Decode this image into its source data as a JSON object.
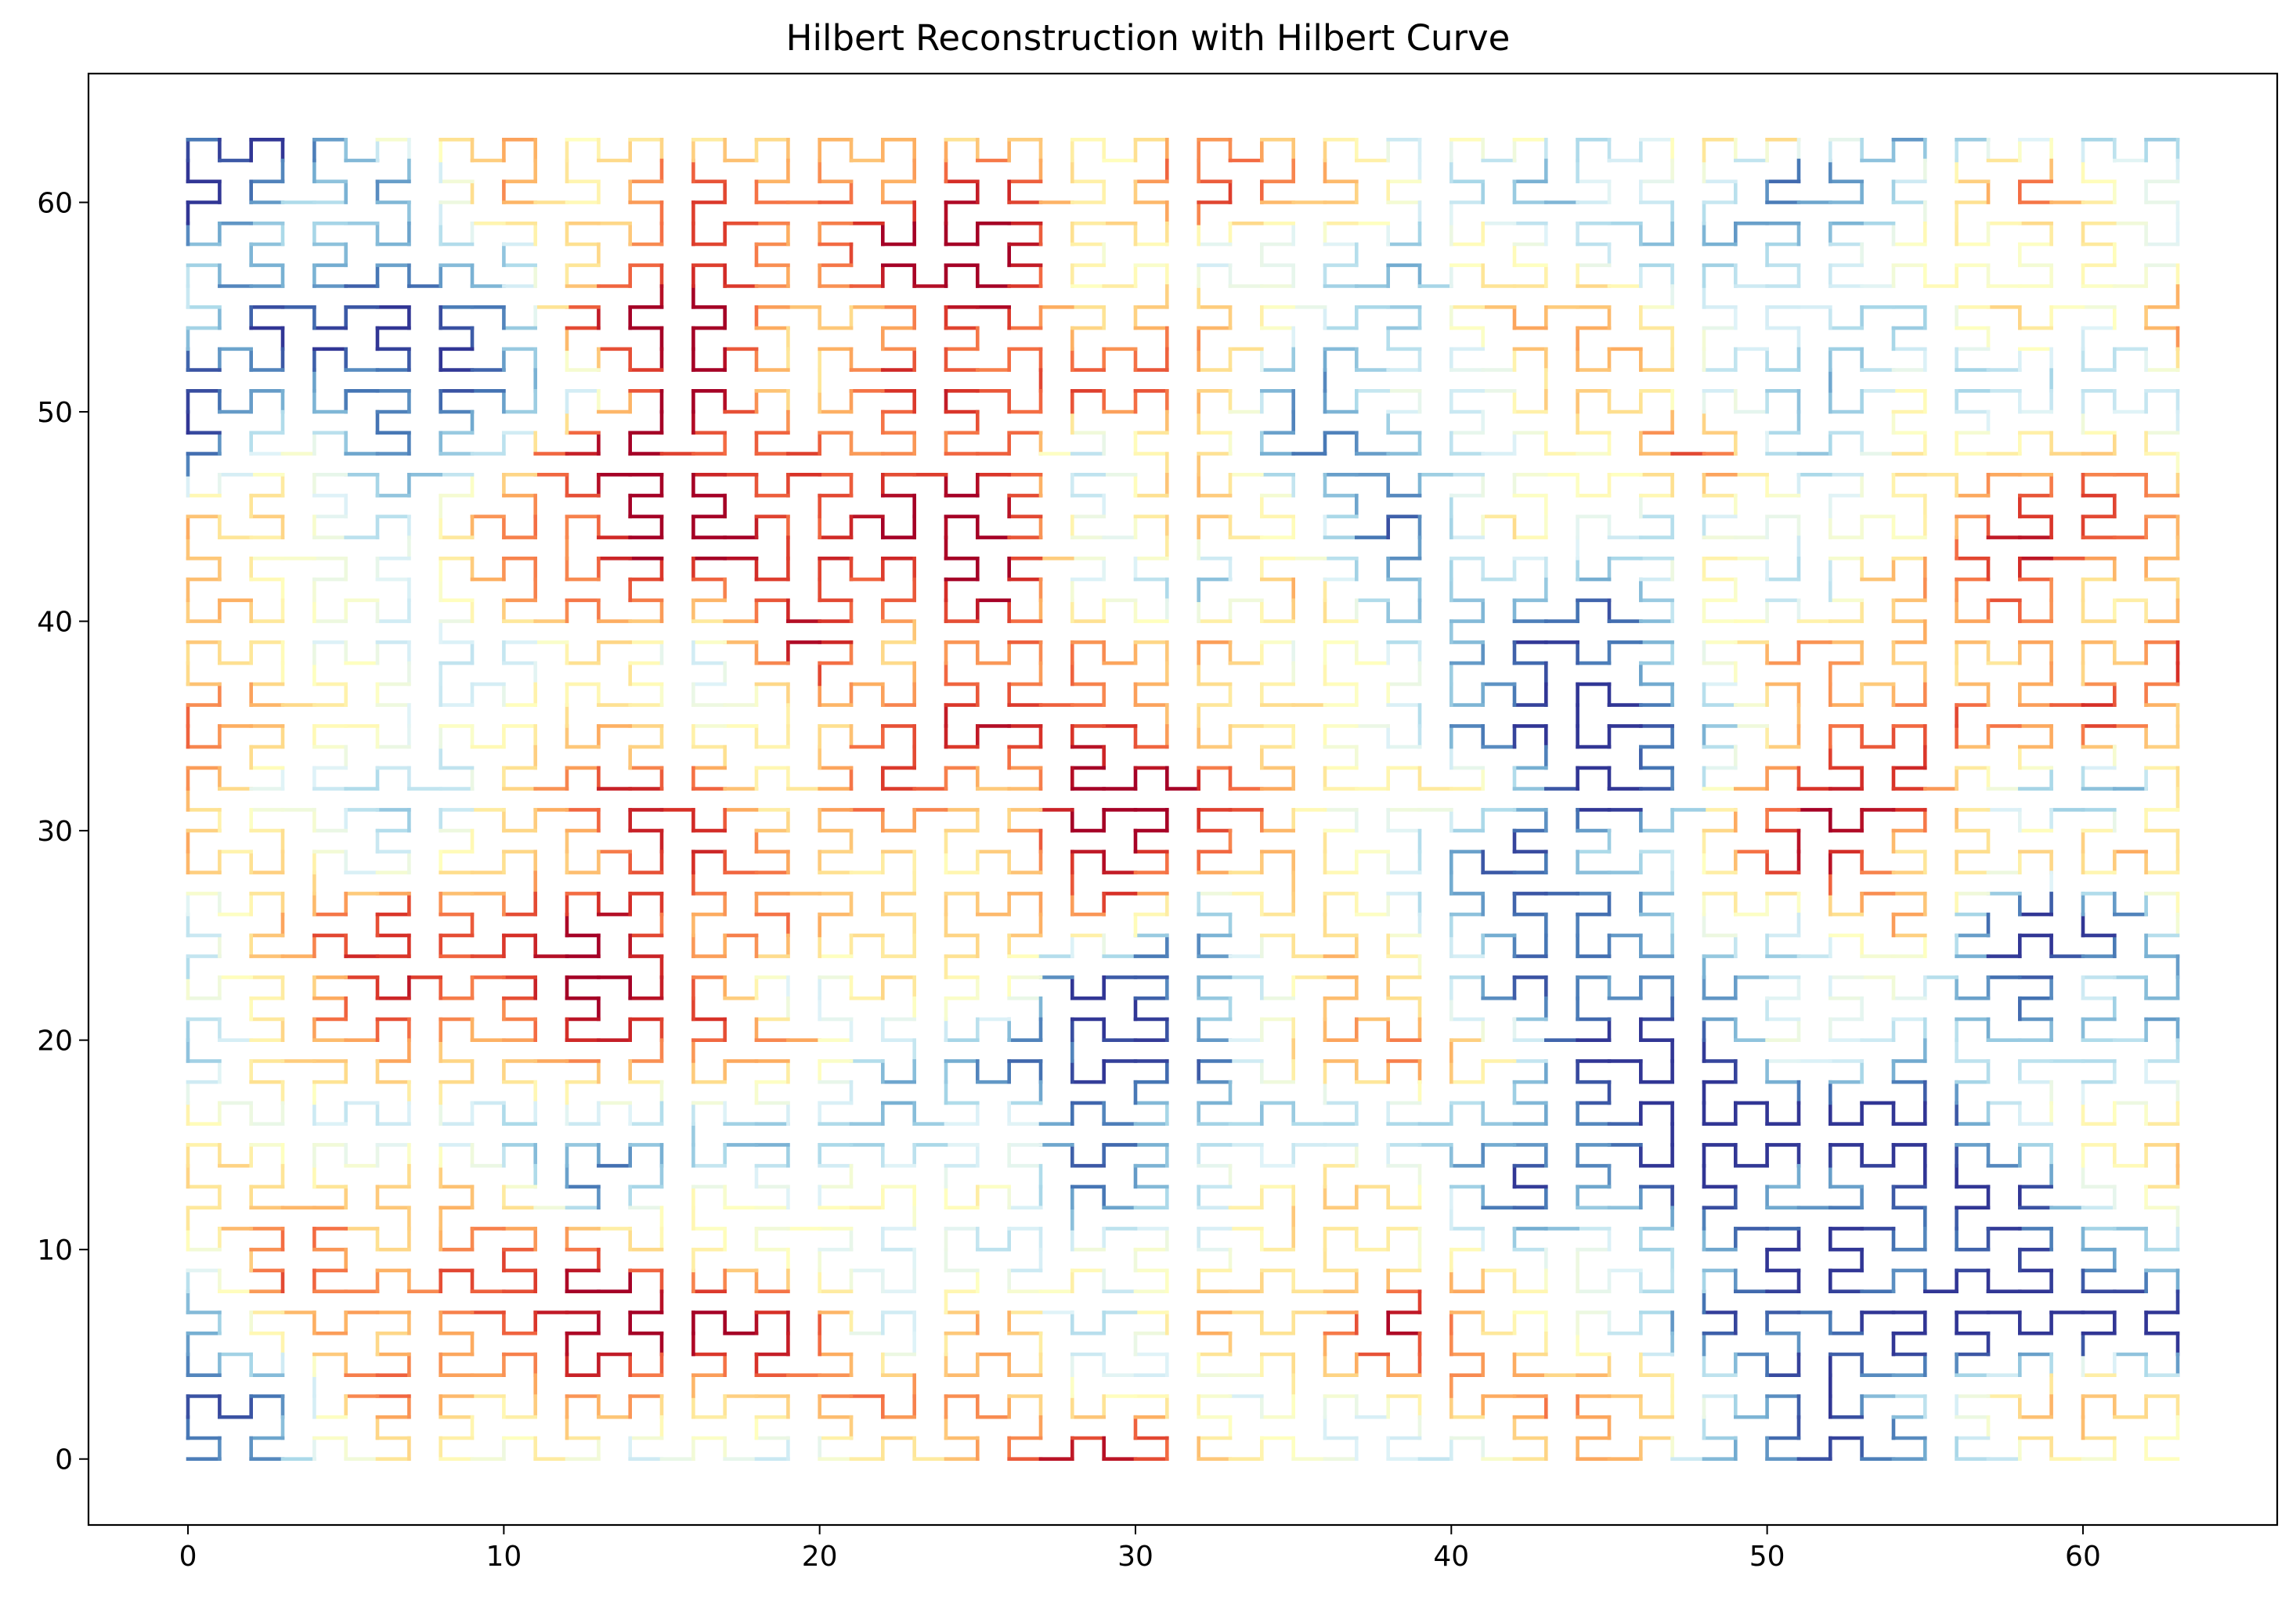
{
  "chart_data": {
    "type": "line",
    "title": "Hilbert Reconstruction with Hilbert Curve",
    "xlabel": "",
    "ylabel": "",
    "curve": {
      "kind": "hilbert",
      "order": 6,
      "grid_size": 64
    },
    "xlim": [
      -3.15,
      66.15
    ],
    "ylim": [
      -3.15,
      66.15
    ],
    "x_ticks": [
      0,
      10,
      20,
      30,
      40,
      50,
      60
    ],
    "y_ticks": [
      0,
      10,
      20,
      30,
      40,
      50,
      60
    ],
    "x_tick_labels": [
      "0",
      "10",
      "20",
      "30",
      "40",
      "50",
      "60"
    ],
    "y_tick_labels": [
      "0",
      "10",
      "20",
      "30",
      "40",
      "50",
      "60"
    ],
    "colormap": "RdYlBu_r",
    "colormap_stops": [
      "#313695",
      "#4575b4",
      "#74add1",
      "#abd9e9",
      "#e0f3f8",
      "#ffffbf",
      "#fee090",
      "#fdae61",
      "#f46d43",
      "#d73027",
      "#a50026"
    ],
    "grid": false,
    "legend": "none"
  }
}
